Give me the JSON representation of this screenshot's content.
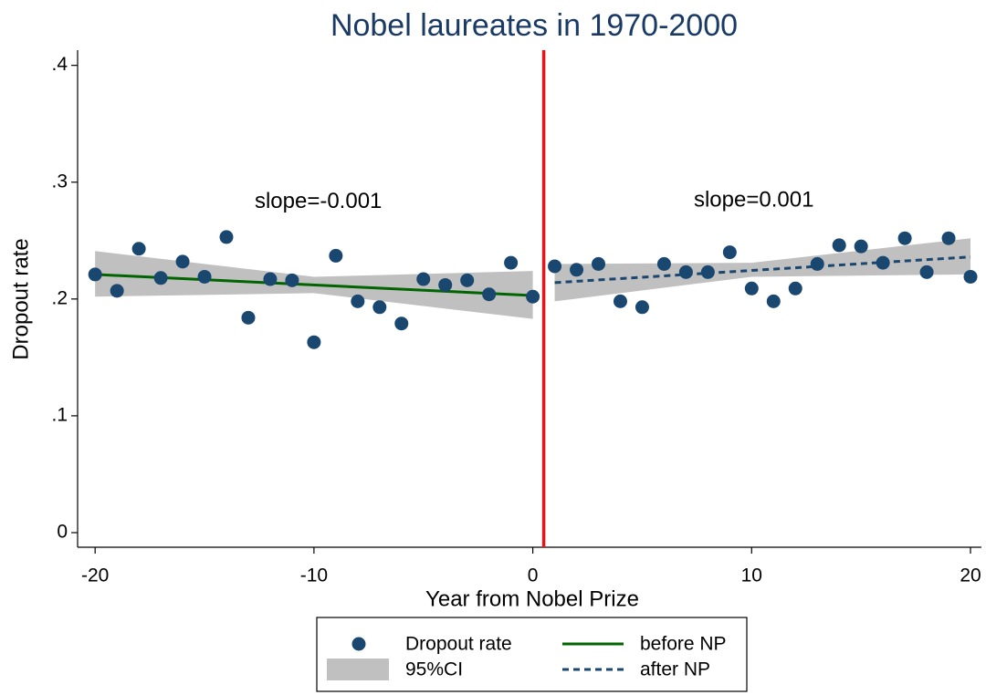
{
  "chart_data": {
    "type": "scatter",
    "title": "Nobel laureates in 1970-2000",
    "xlabel": "Year from Nobel Prize",
    "ylabel": "Dropout rate",
    "xlim": [
      -20.8,
      20.5
    ],
    "ylim": [
      -0.0125,
      0.413
    ],
    "xticks": [
      -20,
      -10,
      0,
      10,
      20
    ],
    "yticks": [
      0,
      {
        "value": 0.1,
        "label": ".1"
      },
      {
        "value": 0.2,
        "label": ".2"
      },
      {
        "value": 0.3,
        "label": ".3"
      },
      {
        "value": 0.4,
        "label": ".4"
      }
    ],
    "grid": false,
    "legend": "bottom",
    "vline": {
      "x": 0.5,
      "color": "#e8141b"
    },
    "annotations": [
      {
        "text": "slope=-0.001",
        "x": -9.8,
        "y": 0.283
      },
      {
        "text": "slope=0.001",
        "x": 10.1,
        "y": 0.284
      }
    ],
    "series": [
      {
        "name": "Dropout rate",
        "type": "scatter",
        "color": "#1a476f",
        "x": [
          -20,
          -19,
          -18,
          -17,
          -16,
          -15,
          -14,
          -13,
          -12,
          -11,
          -10,
          -9,
          -8,
          -7,
          -6,
          -5,
          -4,
          -3,
          -2,
          -1,
          0,
          1,
          2,
          3,
          4,
          5,
          6,
          7,
          8,
          9,
          10,
          11,
          12,
          13,
          14,
          15,
          16,
          17,
          18,
          19,
          20
        ],
        "values": [
          0.221,
          0.207,
          0.243,
          0.218,
          0.232,
          0.219,
          0.253,
          0.184,
          0.217,
          0.216,
          0.163,
          0.237,
          0.198,
          0.193,
          0.179,
          0.217,
          0.212,
          0.216,
          0.204,
          0.231,
          0.202,
          0.228,
          0.225,
          0.23,
          0.198,
          0.193,
          0.23,
          0.223,
          0.223,
          0.24,
          0.209,
          0.198,
          0.209,
          0.23,
          0.246,
          0.245,
          0.231,
          0.252,
          0.223,
          0.252,
          0.219
        ]
      },
      {
        "name": "95%CI",
        "type": "band",
        "color": "#c0c0c0",
        "segments": [
          {
            "x": [
              -20,
              -10,
              0
            ],
            "upper": [
              0.241,
              0.219,
              0.224
            ],
            "lower": [
              0.202,
              0.205,
              0.183
            ]
          },
          {
            "x": [
              1,
              10,
              20
            ],
            "upper": [
              0.23,
              0.231,
              0.252
            ],
            "lower": [
              0.198,
              0.219,
              0.221
            ]
          }
        ]
      },
      {
        "name": "before NP",
        "type": "line",
        "color": "#006400",
        "dash": "solid",
        "x": [
          -20,
          0
        ],
        "values": [
          0.221,
          0.203
        ]
      },
      {
        "name": "after NP",
        "type": "line",
        "color": "#1a476f",
        "dash": "dashed",
        "x": [
          1,
          20
        ],
        "values": [
          0.214,
          0.236
        ]
      }
    ]
  }
}
